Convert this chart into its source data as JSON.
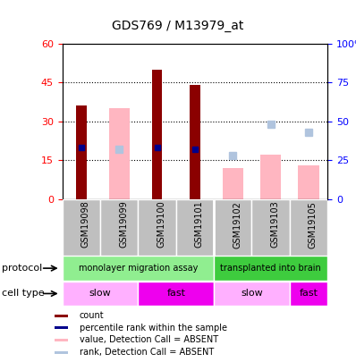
{
  "title": "GDS769 / M13979_at",
  "samples": [
    "GSM19098",
    "GSM19099",
    "GSM19100",
    "GSM19101",
    "GSM19102",
    "GSM19103",
    "GSM19105"
  ],
  "count_values": [
    36,
    0,
    50,
    44,
    0,
    0,
    0
  ],
  "rank_values": [
    33,
    0,
    33,
    32,
    0,
    0,
    0
  ],
  "absent_value_bars": [
    0,
    35,
    0,
    0,
    12,
    17,
    13
  ],
  "absent_rank_dots": [
    0,
    32,
    0,
    0,
    28,
    48,
    43
  ],
  "ylim_left": [
    0,
    60
  ],
  "ylim_right": [
    0,
    100
  ],
  "yticks_left": [
    0,
    15,
    30,
    45,
    60
  ],
  "yticks_right": [
    0,
    25,
    50,
    75,
    100
  ],
  "color_count": "#8B0000",
  "color_rank": "#00008B",
  "color_absent_value": "#FFB6C1",
  "color_absent_rank": "#B0C4DE",
  "protocol_groups": [
    {
      "label": "monolayer migration assay",
      "start": 0,
      "end": 4,
      "color": "#90EE90"
    },
    {
      "label": "transplanted into brain",
      "start": 4,
      "end": 7,
      "color": "#3ECC3E"
    }
  ],
  "cell_type_groups": [
    {
      "label": "slow",
      "start": 0,
      "end": 2,
      "color": "#FFB0FF"
    },
    {
      "label": "fast",
      "start": 2,
      "end": 4,
      "color": "#EE00EE"
    },
    {
      "label": "slow",
      "start": 4,
      "end": 6,
      "color": "#FFB0FF"
    },
    {
      "label": "fast",
      "start": 6,
      "end": 7,
      "color": "#EE00EE"
    }
  ],
  "legend_items": [
    {
      "label": "count",
      "color": "#8B0000"
    },
    {
      "label": "percentile rank within the sample",
      "color": "#00008B"
    },
    {
      "label": "value, Detection Call = ABSENT",
      "color": "#FFB6C1"
    },
    {
      "label": "rank, Detection Call = ABSENT",
      "color": "#B0C4DE"
    }
  ]
}
